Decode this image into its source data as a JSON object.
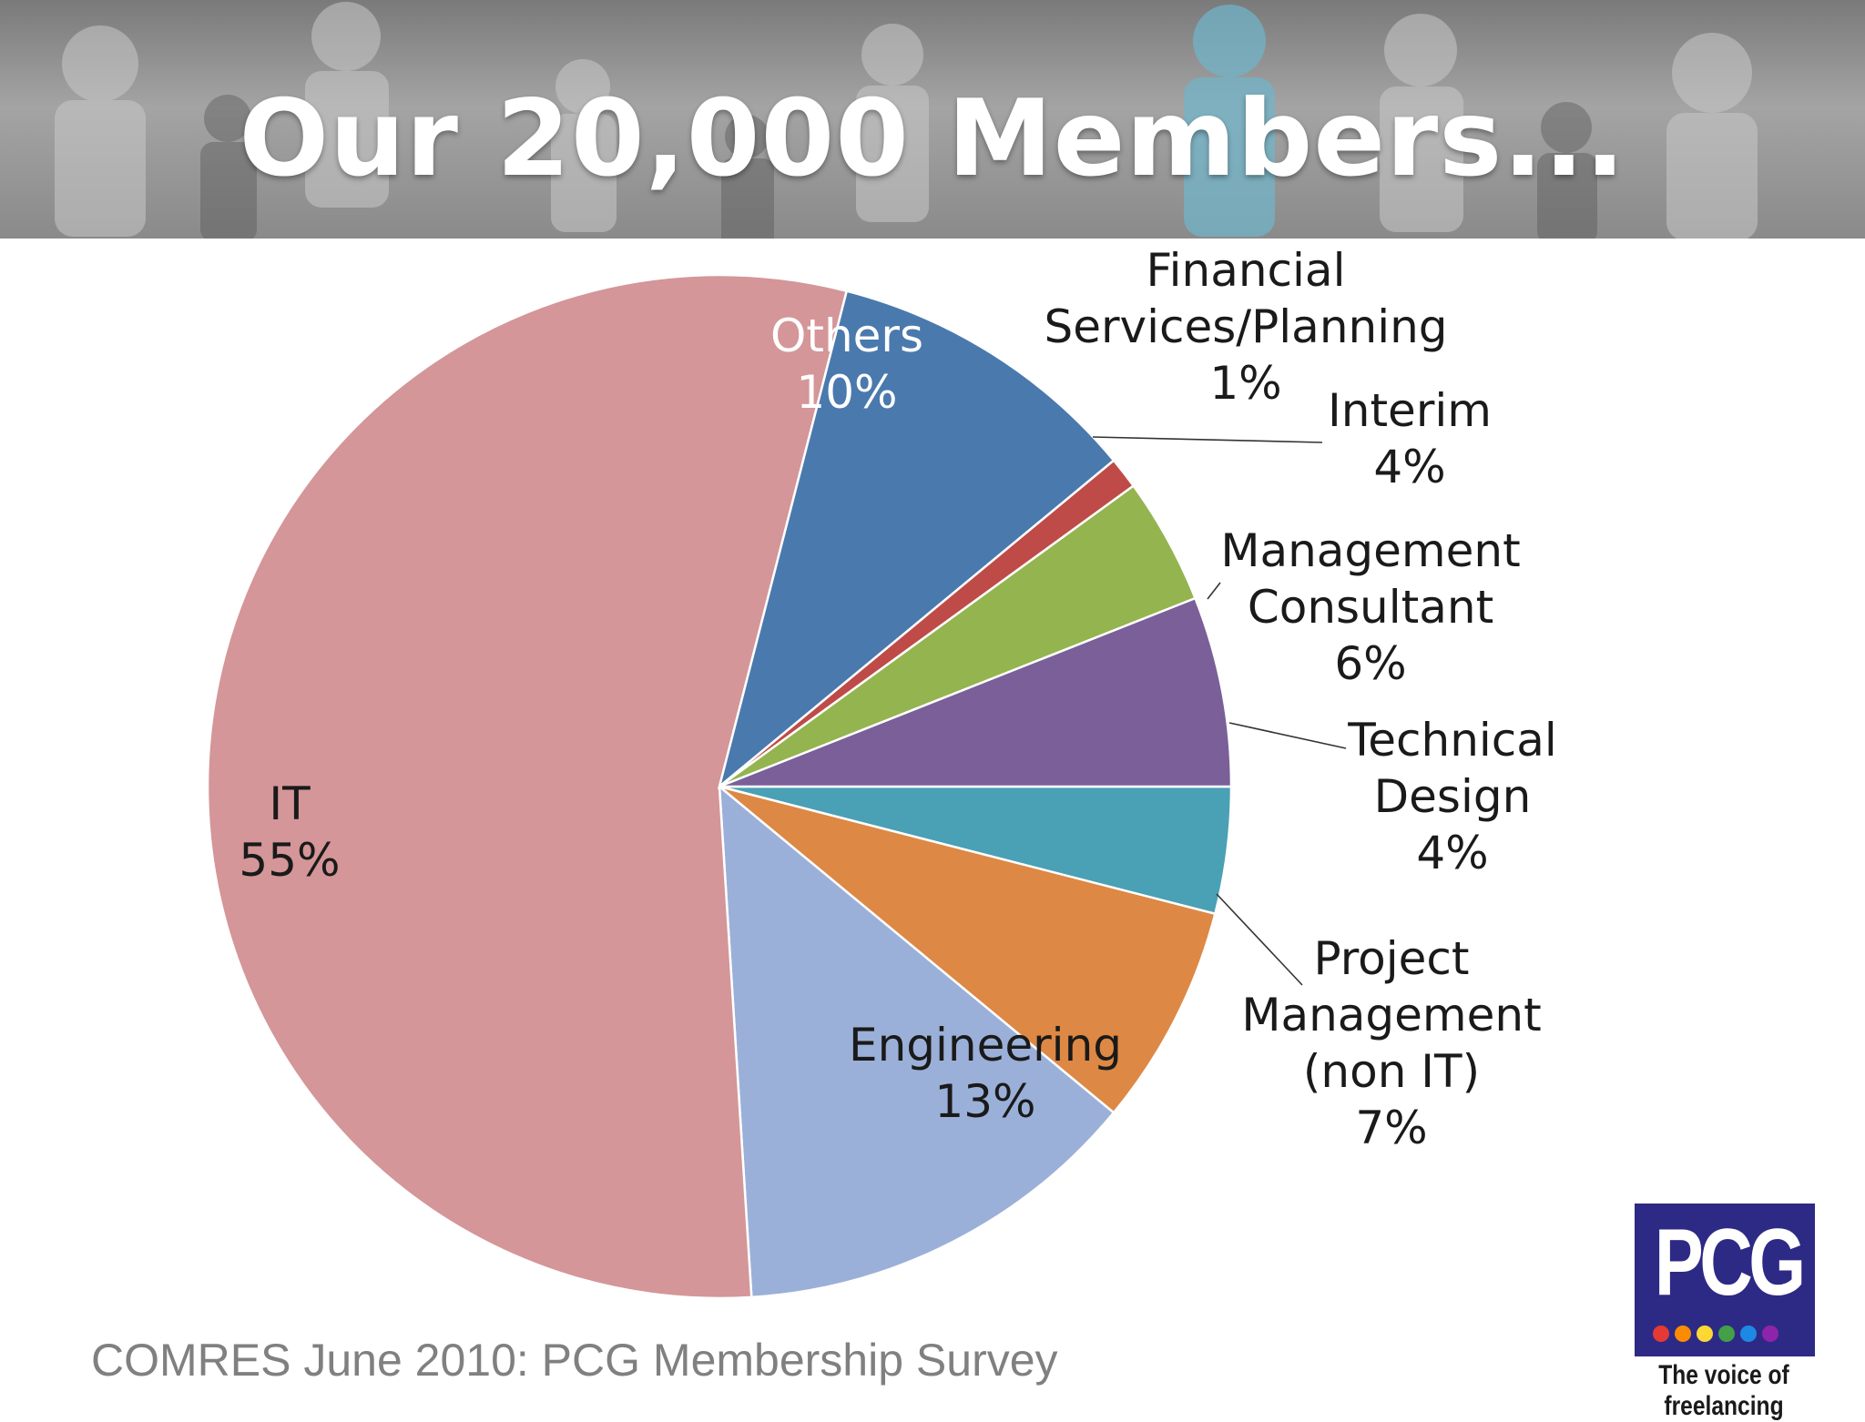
{
  "header": {
    "title": "Our 20,000 Members..."
  },
  "chart_data": {
    "type": "pie",
    "title": "",
    "start_angle_deg": 0,
    "direction": "clockwise",
    "slices": [
      {
        "label_lines": [
          "Technical",
          "Design"
        ],
        "pct_label": "4%",
        "value": 4,
        "color": "#4aa0b5",
        "label_style": "callout"
      },
      {
        "label_lines": [
          "Project",
          "Management",
          "(non IT)"
        ],
        "pct_label": "7%",
        "value": 7,
        "color": "#dd8844",
        "label_style": "callout"
      },
      {
        "label_lines": [
          "Engineering"
        ],
        "pct_label": "13%",
        "value": 13,
        "color": "#9bb0d8",
        "label_style": "inside"
      },
      {
        "label_lines": [
          "IT"
        ],
        "pct_label": "55%",
        "value": 55,
        "color": "#d49698",
        "label_style": "inside"
      },
      {
        "label_lines": [
          "Others"
        ],
        "pct_label": "10%",
        "value": 10,
        "color": "#4a79ad",
        "label_style": "inside-light"
      },
      {
        "label_lines": [
          "Financial",
          "Services/Planning"
        ],
        "pct_label": "1%",
        "value": 1,
        "color": "#be4b48",
        "label_style": "callout"
      },
      {
        "label_lines": [
          "Interim"
        ],
        "pct_label": "4%",
        "value": 4,
        "color": "#93b44f",
        "label_style": "callout"
      },
      {
        "label_lines": [
          "Management",
          "Consultant"
        ],
        "pct_label": "6%",
        "value": 6,
        "color": "#7a5f99",
        "label_style": "callout"
      }
    ]
  },
  "footer": {
    "source": "COMRES June 2010: PCG Membership Survey",
    "logo_text": "PCG",
    "tagline": "The voice of freelancing",
    "logo_dot_colors": [
      "#e53935",
      "#fb8c00",
      "#fdd835",
      "#43a047",
      "#1e88e5",
      "#8e24aa"
    ]
  }
}
